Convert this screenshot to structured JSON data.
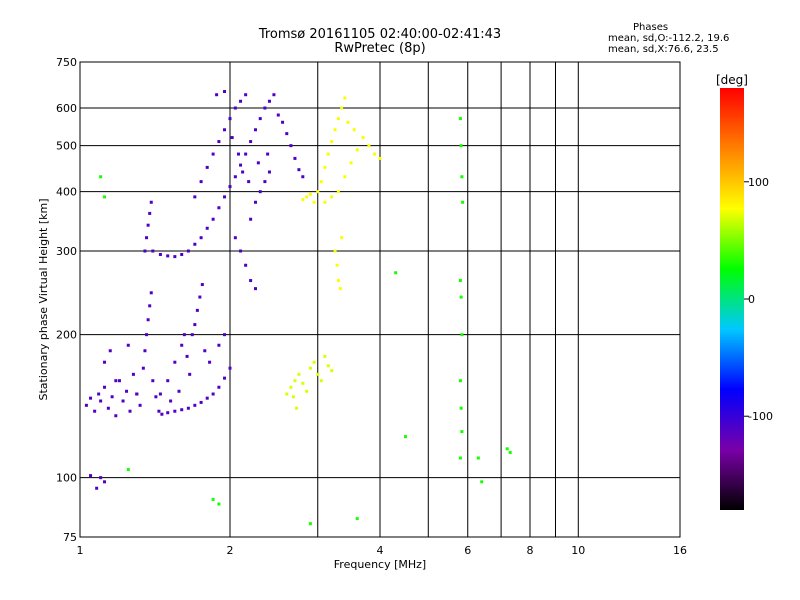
{
  "chart_data": {
    "type": "scatter",
    "title": "Tromsø 20161105 02:40:00-02:41:43",
    "subtitle": "RwPretec (8p)",
    "xlabel": "Frequency [MHz]",
    "ylabel": "Stationary phase Virtual Height [km]",
    "xscale": "log",
    "yscale": "log",
    "xlim": [
      1,
      16
    ],
    "ylim": [
      75,
      750
    ],
    "x_ticks": [
      1,
      2,
      4,
      6,
      8,
      10,
      16
    ],
    "x_tick_labels": [
      "1",
      "2",
      "4",
      "6",
      "8",
      "10",
      "16"
    ],
    "x_minor_grid": [
      3,
      5,
      7,
      9
    ],
    "y_ticks": [
      75,
      100,
      200,
      300,
      400,
      500,
      600,
      750
    ],
    "y_tick_labels": [
      "75",
      "100",
      "200",
      "300",
      "400",
      "500",
      "600",
      "750"
    ],
    "grid": true,
    "colorbar": {
      "label": "[deg]",
      "range": [
        -180,
        180
      ],
      "ticks": [
        100,
        0,
        -100
      ],
      "tick_labels": [
        "100",
        "0",
        "-100"
      ],
      "colors": [
        "#000000",
        "#7a00a8",
        "#0000ff",
        "#00c8ff",
        "#00ff00",
        "#ffff00",
        "#ff8000",
        "#ff0000"
      ]
    },
    "phase_stats": {
      "heading": "Phases",
      "o_label": "mean, sd,O:",
      "o_values": "-112.2, 19.6",
      "x_label": "mean, sd,X:",
      "x_values": " 76.6, 23.5"
    },
    "series": [
      {
        "trace": "o-mode-E-region",
        "phase": -112,
        "points": [
          [
            1.03,
            142
          ],
          [
            1.05,
            147
          ],
          [
            1.07,
            138
          ],
          [
            1.09,
            150
          ],
          [
            1.1,
            145
          ],
          [
            1.12,
            155
          ],
          [
            1.14,
            140
          ],
          [
            1.16,
            148
          ],
          [
            1.18,
            135
          ],
          [
            1.2,
            160
          ],
          [
            1.22,
            145
          ],
          [
            1.24,
            152
          ],
          [
            1.26,
            138
          ],
          [
            1.28,
            165
          ],
          [
            1.3,
            150
          ],
          [
            1.32,
            142
          ],
          [
            1.34,
            170
          ],
          [
            1.35,
            185
          ],
          [
            1.36,
            200
          ],
          [
            1.37,
            215
          ],
          [
            1.38,
            230
          ],
          [
            1.39,
            245
          ],
          [
            1.4,
            160
          ],
          [
            1.42,
            148
          ],
          [
            1.44,
            138
          ],
          [
            1.46,
            136
          ],
          [
            1.5,
            137
          ],
          [
            1.55,
            138
          ],
          [
            1.6,
            139
          ],
          [
            1.65,
            140
          ],
          [
            1.7,
            142
          ],
          [
            1.75,
            144
          ],
          [
            1.8,
            147
          ],
          [
            1.85,
            150
          ],
          [
            1.9,
            155
          ],
          [
            1.95,
            162
          ],
          [
            2.0,
            170
          ],
          [
            1.7,
            210
          ],
          [
            1.72,
            225
          ],
          [
            1.74,
            240
          ],
          [
            1.76,
            255
          ],
          [
            1.6,
            190
          ],
          [
            1.62,
            200
          ],
          [
            1.64,
            180
          ],
          [
            1.12,
            175
          ],
          [
            1.15,
            185
          ],
          [
            1.25,
            190
          ],
          [
            1.18,
            160
          ],
          [
            1.08,
            95
          ],
          [
            1.1,
            100
          ],
          [
            1.12,
            98
          ],
          [
            1.05,
            101
          ],
          [
            1.3,
            150
          ],
          [
            1.5,
            160
          ],
          [
            1.55,
            175
          ],
          [
            1.45,
            150
          ],
          [
            1.52,
            145
          ],
          [
            1.58,
            152
          ],
          [
            1.66,
            165
          ],
          [
            1.68,
            200
          ],
          [
            1.78,
            185
          ],
          [
            1.82,
            175
          ],
          [
            1.9,
            190
          ],
          [
            1.95,
            200
          ]
        ]
      },
      {
        "trace": "o-mode-F-region",
        "phase": -110,
        "points": [
          [
            1.35,
            300
          ],
          [
            1.36,
            320
          ],
          [
            1.37,
            340
          ],
          [
            1.38,
            360
          ],
          [
            1.39,
            380
          ],
          [
            1.4,
            300
          ],
          [
            1.45,
            295
          ],
          [
            1.5,
            293
          ],
          [
            1.55,
            292
          ],
          [
            1.6,
            295
          ],
          [
            1.65,
            300
          ],
          [
            1.7,
            310
          ],
          [
            1.75,
            320
          ],
          [
            1.8,
            335
          ],
          [
            1.85,
            350
          ],
          [
            1.9,
            370
          ],
          [
            1.95,
            390
          ],
          [
            2.0,
            410
          ],
          [
            2.05,
            430
          ],
          [
            2.1,
            455
          ],
          [
            2.15,
            480
          ],
          [
            2.2,
            510
          ],
          [
            2.25,
            540
          ],
          [
            2.3,
            570
          ],
          [
            2.35,
            600
          ],
          [
            2.4,
            620
          ],
          [
            2.45,
            640
          ],
          [
            2.5,
            580
          ],
          [
            2.55,
            560
          ],
          [
            2.6,
            530
          ],
          [
            2.65,
            500
          ],
          [
            2.7,
            470
          ],
          [
            2.75,
            445
          ],
          [
            2.8,
            430
          ],
          [
            1.7,
            390
          ],
          [
            1.75,
            420
          ],
          [
            1.8,
            450
          ],
          [
            1.85,
            480
          ],
          [
            1.9,
            510
          ],
          [
            1.95,
            540
          ],
          [
            2.0,
            570
          ],
          [
            2.05,
            600
          ],
          [
            2.1,
            620
          ],
          [
            2.15,
            640
          ],
          [
            2.2,
            350
          ],
          [
            2.25,
            380
          ],
          [
            2.3,
            400
          ],
          [
            2.35,
            420
          ],
          [
            2.4,
            440
          ],
          [
            2.05,
            320
          ],
          [
            2.1,
            300
          ],
          [
            2.15,
            280
          ],
          [
            2.2,
            260
          ],
          [
            2.25,
            250
          ],
          [
            1.88,
            640
          ],
          [
            1.95,
            650
          ],
          [
            2.02,
            520
          ],
          [
            2.08,
            480
          ],
          [
            2.12,
            440
          ],
          [
            2.18,
            420
          ],
          [
            2.28,
            460
          ],
          [
            2.38,
            480
          ]
        ]
      },
      {
        "trace": "x-mode-F-region",
        "phase": 76,
        "points": [
          [
            2.95,
            380
          ],
          [
            3.0,
            400
          ],
          [
            3.05,
            420
          ],
          [
            3.1,
            450
          ],
          [
            3.15,
            480
          ],
          [
            3.2,
            510
          ],
          [
            3.25,
            540
          ],
          [
            3.3,
            570
          ],
          [
            3.35,
            600
          ],
          [
            3.4,
            630
          ],
          [
            3.1,
            380
          ],
          [
            3.2,
            390
          ],
          [
            3.3,
            400
          ],
          [
            3.4,
            430
          ],
          [
            3.5,
            460
          ],
          [
            3.6,
            490
          ],
          [
            3.7,
            520
          ],
          [
            3.8,
            500
          ],
          [
            3.9,
            480
          ],
          [
            4.0,
            470
          ],
          [
            3.25,
            300
          ],
          [
            3.28,
            280
          ],
          [
            3.3,
            260
          ],
          [
            3.33,
            250
          ],
          [
            3.35,
            320
          ],
          [
            2.8,
            385
          ],
          [
            2.85,
            390
          ],
          [
            2.9,
            395
          ],
          [
            3.45,
            560
          ],
          [
            3.55,
            540
          ]
        ]
      },
      {
        "trace": "x-mode-E-region",
        "phase": 70,
        "points": [
          [
            2.6,
            150
          ],
          [
            2.65,
            155
          ],
          [
            2.7,
            160
          ],
          [
            2.75,
            165
          ],
          [
            2.8,
            158
          ],
          [
            2.85,
            152
          ],
          [
            2.9,
            170
          ],
          [
            2.95,
            175
          ],
          [
            3.0,
            165
          ],
          [
            3.05,
            160
          ],
          [
            3.1,
            180
          ],
          [
            3.15,
            172
          ],
          [
            3.2,
            168
          ],
          [
            2.68,
            148
          ],
          [
            2.72,
            140
          ]
        ]
      },
      {
        "trace": "scattered",
        "phase": 30,
        "points": [
          [
            5.8,
            570
          ],
          [
            5.82,
            500
          ],
          [
            5.84,
            430
          ],
          [
            5.86,
            380
          ],
          [
            5.8,
            260
          ],
          [
            5.82,
            240
          ],
          [
            5.84,
            200
          ],
          [
            5.8,
            160
          ],
          [
            5.82,
            140
          ],
          [
            5.84,
            125
          ],
          [
            5.8,
            110
          ],
          [
            6.4,
            98
          ],
          [
            6.3,
            110
          ],
          [
            7.2,
            115
          ],
          [
            7.3,
            113
          ],
          [
            4.5,
            122
          ],
          [
            4.3,
            270
          ],
          [
            2.9,
            80
          ],
          [
            3.6,
            82
          ],
          [
            1.85,
            90
          ],
          [
            1.9,
            88
          ],
          [
            1.1,
            430
          ],
          [
            1.12,
            390
          ],
          [
            1.25,
            104
          ]
        ]
      }
    ]
  }
}
